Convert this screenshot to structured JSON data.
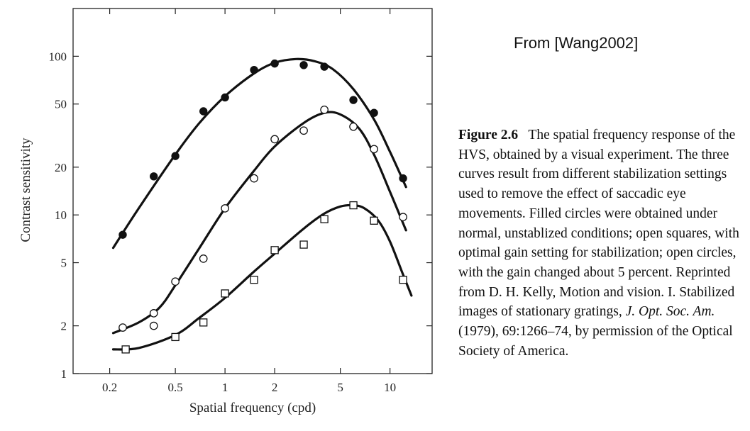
{
  "source_note": "From [Wang2002]",
  "caption": {
    "figure_number": "Figure 2.6",
    "text_main": "The spatial frequency response of the HVS, obtained by a visual experiment. The three curves result from different stabilization settings used to remove the effect of saccadic eye movements. Filled circles were obtained under normal, unstablized conditions; open squares, with optimal gain setting for stabilization; open circles, with the gain changed about 5 percent. Reprinted from D. H. Kelly, Motion and vision. I. Stabilized images of stationary gratings,",
    "journal": "J. Opt. Soc. Am.",
    "text_tail": "(1979), 69:1266–74, by permission of the Optical Society of America."
  },
  "chart_data": {
    "type": "scatter",
    "title": "",
    "xlabel": "Spatial frequency (cpd)",
    "ylabel": "Contrast sensitivity",
    "xscale": "log",
    "yscale": "log",
    "xlim": [
      0.12,
      18
    ],
    "ylim": [
      1,
      200
    ],
    "grid": false,
    "x_ticks": [
      {
        "value": 0.2,
        "label": "0.2"
      },
      {
        "value": 0.5,
        "label": "0.5"
      },
      {
        "value": 1,
        "label": "1"
      },
      {
        "value": 2,
        "label": "2"
      },
      {
        "value": 5,
        "label": "5"
      },
      {
        "value": 10,
        "label": "10"
      }
    ],
    "y_ticks": [
      {
        "value": 1,
        "label": "1"
      },
      {
        "value": 2,
        "label": "2"
      },
      {
        "value": 5,
        "label": "5"
      },
      {
        "value": 10,
        "label": "10"
      },
      {
        "value": 20,
        "label": "20"
      },
      {
        "value": 50,
        "label": "50"
      },
      {
        "value": 100,
        "label": "100"
      }
    ],
    "series": [
      {
        "marker": "filled-circle",
        "points": [
          [
            0.24,
            7.5
          ],
          [
            0.37,
            17.5
          ],
          [
            0.5,
            23.5
          ],
          [
            0.74,
            45
          ],
          [
            1.0,
            55
          ],
          [
            1.5,
            82
          ],
          [
            2.0,
            90
          ],
          [
            3.0,
            88
          ],
          [
            4.0,
            86
          ],
          [
            6.0,
            53
          ],
          [
            8.0,
            44
          ],
          [
            12.0,
            17
          ]
        ],
        "curve": [
          [
            0.21,
            6.2
          ],
          [
            0.3,
            11
          ],
          [
            0.5,
            24
          ],
          [
            0.7,
            38
          ],
          [
            1.0,
            56
          ],
          [
            1.5,
            78
          ],
          [
            2.0,
            91
          ],
          [
            2.7,
            96
          ],
          [
            3.5,
            93
          ],
          [
            4.5,
            83
          ],
          [
            6.0,
            62
          ],
          [
            8.0,
            40
          ],
          [
            10.0,
            25
          ],
          [
            12.5,
            15
          ]
        ]
      },
      {
        "marker": "open-circle",
        "points": [
          [
            0.24,
            1.95
          ],
          [
            0.37,
            2.4
          ],
          [
            0.37,
            2.0
          ],
          [
            0.5,
            3.8
          ],
          [
            0.74,
            5.3
          ],
          [
            1.0,
            11
          ],
          [
            1.5,
            17
          ],
          [
            2.0,
            30
          ],
          [
            3.0,
            34
          ],
          [
            4.0,
            46
          ],
          [
            6.0,
            36
          ],
          [
            8.0,
            26
          ],
          [
            12.0,
            9.7
          ]
        ],
        "curve": [
          [
            0.21,
            1.8
          ],
          [
            0.3,
            2.1
          ],
          [
            0.4,
            2.6
          ],
          [
            0.5,
            3.6
          ],
          [
            0.7,
            6.2
          ],
          [
            1.0,
            11
          ],
          [
            1.5,
            19
          ],
          [
            2.0,
            27
          ],
          [
            3.0,
            38
          ],
          [
            4.0,
            44
          ],
          [
            5.0,
            43
          ],
          [
            6.5,
            35
          ],
          [
            8.0,
            24
          ],
          [
            10.0,
            14
          ],
          [
            12.5,
            8.0
          ]
        ]
      },
      {
        "marker": "open-square",
        "points": [
          [
            0.25,
            1.42
          ],
          [
            0.5,
            1.7
          ],
          [
            0.74,
            2.1
          ],
          [
            1.0,
            3.2
          ],
          [
            1.5,
            3.9
          ],
          [
            2.0,
            6.0
          ],
          [
            3.0,
            6.5
          ],
          [
            4.0,
            9.4
          ],
          [
            6.0,
            11.5
          ],
          [
            8.0,
            9.2
          ],
          [
            12.0,
            3.9
          ]
        ],
        "curve": [
          [
            0.21,
            1.42
          ],
          [
            0.3,
            1.45
          ],
          [
            0.5,
            1.75
          ],
          [
            0.7,
            2.25
          ],
          [
            1.0,
            3.0
          ],
          [
            1.5,
            4.4
          ],
          [
            2.0,
            5.7
          ],
          [
            3.0,
            8.2
          ],
          [
            4.0,
            10.2
          ],
          [
            5.0,
            11.3
          ],
          [
            6.0,
            11.5
          ],
          [
            7.0,
            11.0
          ],
          [
            8.5,
            9.2
          ],
          [
            10.0,
            6.8
          ],
          [
            12.0,
            4.2
          ],
          [
            13.5,
            3.1
          ]
        ]
      }
    ]
  }
}
